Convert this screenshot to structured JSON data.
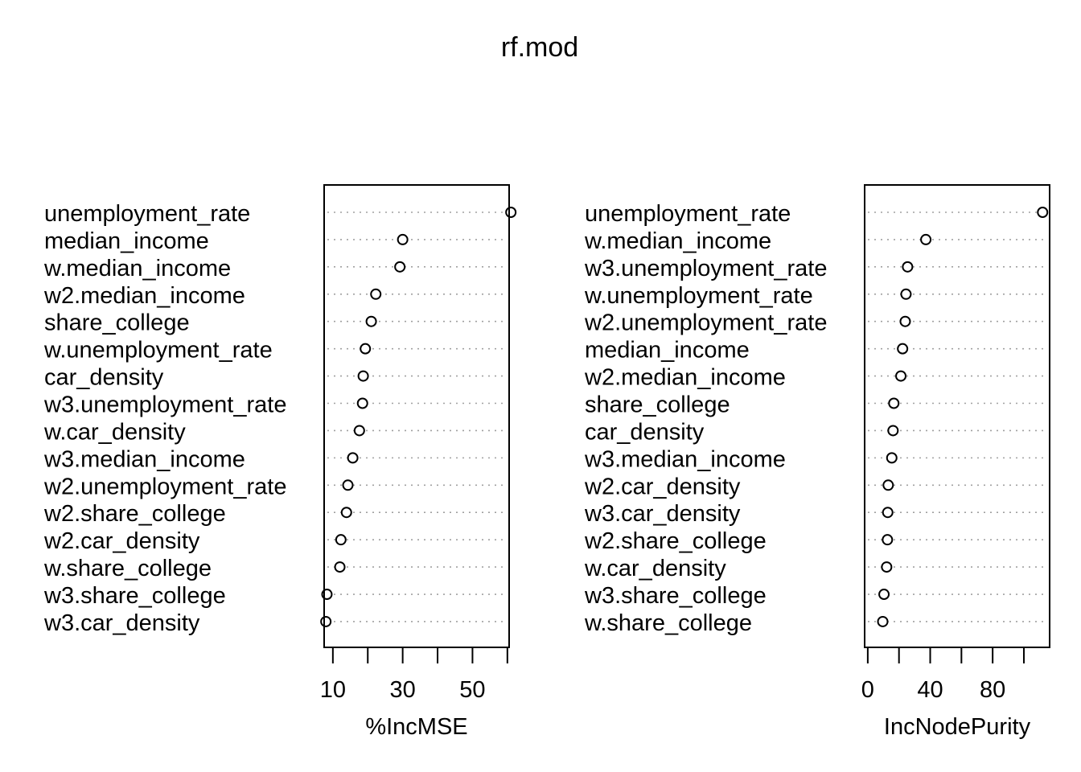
{
  "title": "rf.mod",
  "chart_data": [
    {
      "type": "dotchart",
      "xlabel": "%IncMSE",
      "xlim": [
        7.5,
        60.5
      ],
      "xticks": [
        10,
        20,
        30,
        40,
        50,
        60
      ],
      "xtick_labels": [
        "10",
        "30",
        "50"
      ],
      "grid": "dotted horizontal guide lines",
      "categories": [
        "unemployment_rate",
        "median_income",
        "w.median_income",
        "w2.median_income",
        "share_college",
        "w.unemployment_rate",
        "car_density",
        "w3.unemployment_rate",
        "w.car_density",
        "w3.median_income",
        "w2.unemployment_rate",
        "w2.share_college",
        "w2.car_density",
        "w.share_college",
        "w3.share_college",
        "w3.car_density"
      ],
      "values": [
        61.0,
        30.0,
        29.2,
        22.3,
        21.0,
        19.3,
        18.7,
        18.5,
        17.6,
        15.7,
        14.3,
        13.9,
        12.3,
        12.0,
        8.3,
        8.0
      ]
    },
    {
      "type": "dotchart",
      "xlabel": "IncNodePurity",
      "xlim": [
        -2,
        116.5
      ],
      "xticks": [
        0,
        20,
        40,
        60,
        80,
        100
      ],
      "xtick_labels": [
        "0",
        "40",
        "80"
      ],
      "grid": "dotted horizontal guide lines",
      "categories": [
        "unemployment_rate",
        "w.median_income",
        "w3.unemployment_rate",
        "w.unemployment_rate",
        "w2.unemployment_rate",
        "median_income",
        "w2.median_income",
        "share_college",
        "car_density",
        "w3.median_income",
        "w2.car_density",
        "w3.car_density",
        "w2.share_college",
        "w.car_density",
        "w3.share_college",
        "w.share_college"
      ],
      "values": [
        112.0,
        37.2,
        25.5,
        24.5,
        24.0,
        22.3,
        21.2,
        16.7,
        16.2,
        15.4,
        13.1,
        12.8,
        12.6,
        12.1,
        10.4,
        9.6
      ]
    }
  ]
}
